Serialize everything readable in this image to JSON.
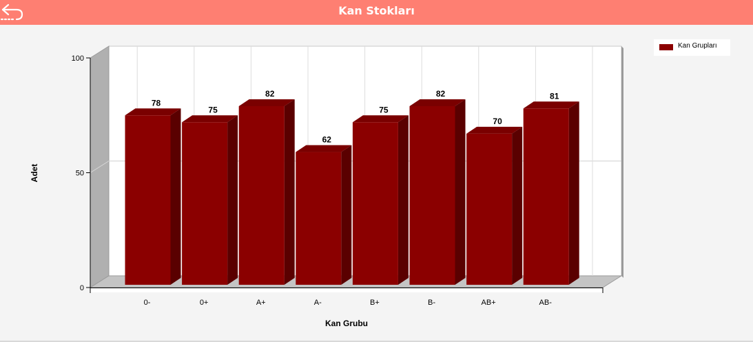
{
  "header": {
    "title": "Kan Stokları"
  },
  "colors": {
    "header_bg": "#fe7f72",
    "bar": "#8b0000"
  },
  "legend": {
    "label": "Kan Grupları"
  },
  "chart_data": {
    "type": "bar",
    "title": "",
    "categories": [
      "0-",
      "0+",
      "A+",
      "A-",
      "B+",
      "B-",
      "AB+",
      "AB-"
    ],
    "series": [
      {
        "name": "Kan Grupları",
        "values": [
          78,
          75,
          82,
          62,
          75,
          82,
          70,
          81
        ]
      }
    ],
    "xlabel": "Kan Grubu",
    "ylabel": "Adet",
    "ylim": [
      0,
      100
    ],
    "yticks": [
      0,
      50,
      100
    ],
    "grid": true,
    "three_d": true,
    "legend_position": "top-right"
  }
}
